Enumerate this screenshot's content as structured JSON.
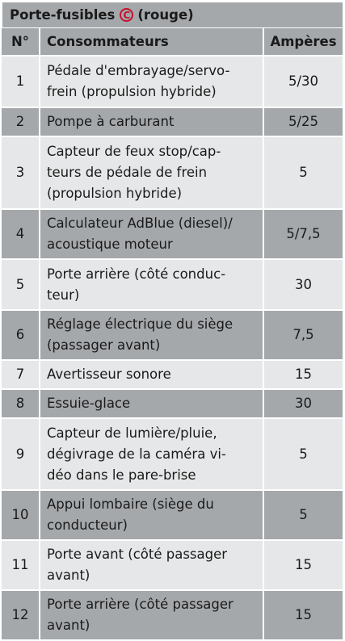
{
  "title": {
    "prefix": "Porte-fusibles",
    "mark": "C",
    "suffix": "(rouge)"
  },
  "headers": {
    "number": "N°",
    "consumer": "Consommateurs",
    "amperes": "Ampères"
  },
  "rows": [
    {
      "number": "1",
      "consumer": "Pédale d'embrayage/servo-\nfrein (propulsion hybride)",
      "amperes": "5/30",
      "height": 64
    },
    {
      "number": "2",
      "consumer": "Pompe à carburant",
      "amperes": "5/25",
      "height": 32
    },
    {
      "number": "3",
      "consumer": "Capteur de feux stop/cap-\nteurs de pédale de frein\n(propulsion hybride)",
      "amperes": "5",
      "height": 90
    },
    {
      "number": "4",
      "consumer": "Calculateur AdBlue (diesel)/\nacoustique moteur",
      "amperes": "5/7,5",
      "height": 61
    },
    {
      "number": "5",
      "consumer": "Porte arrière (côté conduc-\nteur)",
      "amperes": "30",
      "height": 63
    },
    {
      "number": "6",
      "consumer": "Réglage électrique du siège\n(passager avant)",
      "amperes": "7,5",
      "height": 61
    },
    {
      "number": "7",
      "consumer": "Avertisseur sonore",
      "amperes": "15",
      "height": 33
    },
    {
      "number": "8",
      "consumer": "Essuie-glace",
      "amperes": "30",
      "height": 33
    },
    {
      "number": "9",
      "consumer": "Capteur de lumière/pluie,\ndégivrage de la caméra vi-\ndéo dans le pare-brise",
      "amperes": "5",
      "height": 89
    },
    {
      "number": "10",
      "consumer": "Appui lombaire (siège du\nconducteur)",
      "amperes": "5",
      "height": 61
    },
    {
      "number": "11",
      "consumer": "Porte avant (côté passager\navant)",
      "amperes": "15",
      "height": 62
    },
    {
      "number": "12",
      "consumer": "Porte arrière (côté passager\navant)",
      "amperes": "15",
      "height": 62
    }
  ]
}
